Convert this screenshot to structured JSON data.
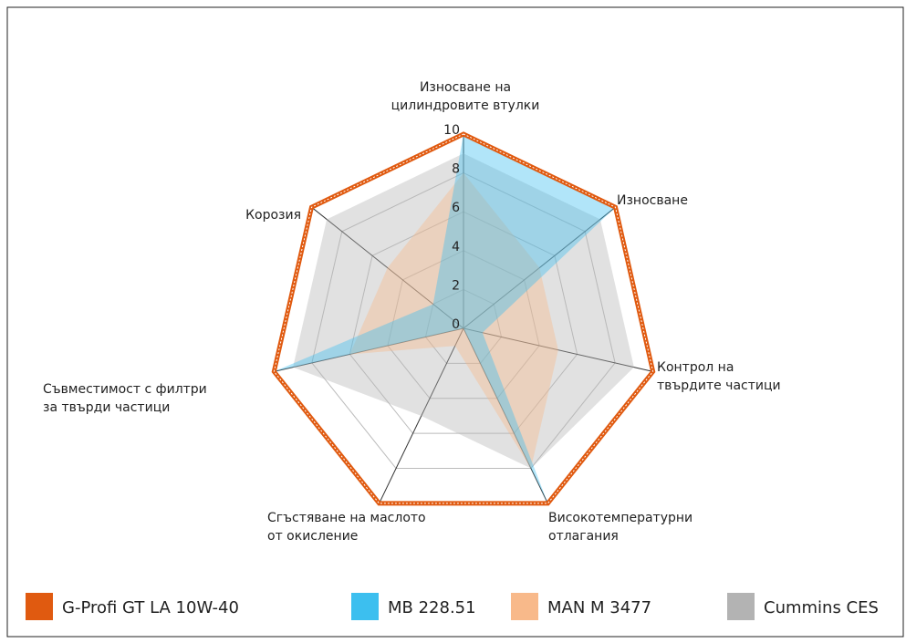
{
  "chart_data": {
    "type": "radar",
    "categories": [
      [
        "Износване на",
        "цилиндровите втулки"
      ],
      [
        "Износване"
      ],
      [
        "Контрол на",
        "твърдите частици"
      ],
      [
        "Високотемпературни",
        "отлагания"
      ],
      [
        "Сгъстяване на маслото",
        "от окисление"
      ],
      [
        "Съвместимост с филтри",
        "за твърди частици"
      ],
      [
        "Корозия"
      ]
    ],
    "rlim": [
      0,
      10
    ],
    "rticks": [
      0,
      2,
      4,
      6,
      8,
      10
    ],
    "grid": true,
    "legend": "bottom",
    "series": [
      {
        "name": "G-Profi GT LA 10W-40",
        "color": "#e05a10",
        "values": [
          10,
          10,
          10,
          10,
          10,
          10,
          10
        ]
      },
      {
        "name": "MB 228.51",
        "color": "#3cbfef",
        "values": [
          10,
          10,
          1,
          10,
          0,
          10,
          2
        ]
      },
      {
        "name": "MAN M 3477",
        "color": "#f8b98a",
        "values": [
          8,
          5,
          5,
          8,
          1,
          6,
          5
        ]
      },
      {
        "name": "Cummins CES",
        "color": "#b3b3b3",
        "values": [
          9,
          9,
          9,
          8,
          5,
          9,
          9
        ]
      }
    ]
  }
}
